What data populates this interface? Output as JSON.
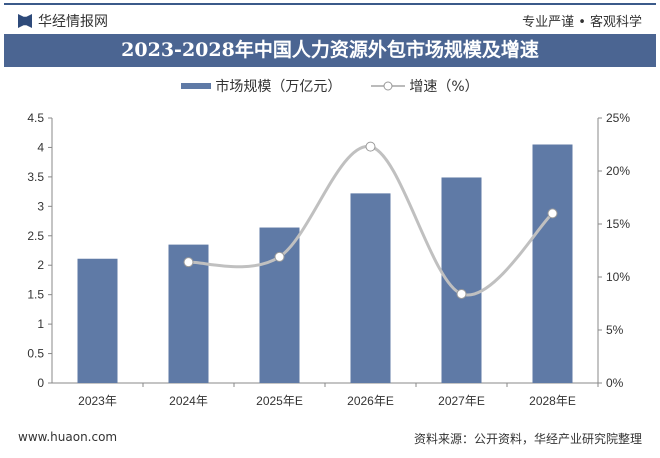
{
  "header": {
    "brand": "华经情报网",
    "slogan": "专业严谨 • 客观科学"
  },
  "title": "2023-2028年中国人力资源外包市场规模及增速",
  "footer": {
    "website": "www.huaon.com",
    "source": "资料来源：公开资料，华经产业研究院整理"
  },
  "watermark": "华经产业研究院",
  "chart_data": {
    "type": "bar+line",
    "title": "2023-2028年中国人力资源外包市场规模及增速",
    "categories": [
      "2023年",
      "2024年",
      "2025年E",
      "2026年E",
      "2027年E",
      "2028年E"
    ],
    "series": [
      {
        "name": "市场规模（万亿元）",
        "type": "bar",
        "axis": "left",
        "color": "#5f7aa6",
        "values": [
          2.11,
          2.35,
          2.64,
          3.22,
          3.49,
          4.05
        ]
      },
      {
        "name": "增速（%）",
        "type": "line",
        "axis": "right",
        "color": "#c0c0c0",
        "values": [
          null,
          11.4,
          11.9,
          22.3,
          8.4,
          16.0
        ]
      }
    ],
    "ylim_left": [
      0,
      4.5
    ],
    "yticks_left": [
      "0",
      "0.5",
      "1",
      "1.5",
      "2",
      "2.5",
      "3",
      "3.5",
      "4",
      "4.5"
    ],
    "ylim_right": [
      0,
      25
    ],
    "yticks_right": [
      "0%",
      "5%",
      "10%",
      "15%",
      "20%",
      "25%"
    ],
    "legend": "top",
    "grid": false
  }
}
